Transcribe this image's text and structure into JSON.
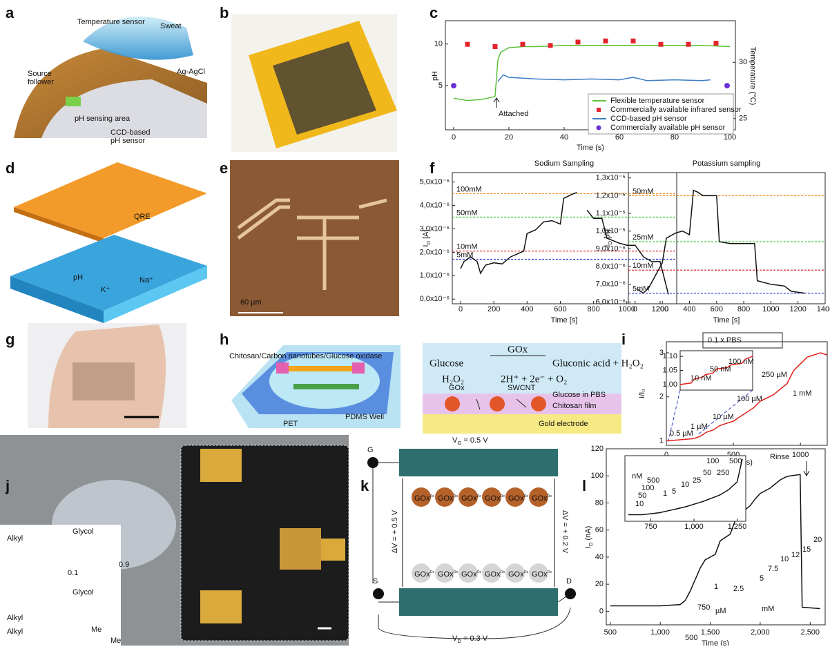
{
  "figure": {
    "panel_letters": [
      "a",
      "b",
      "c",
      "d",
      "e",
      "f",
      "g",
      "h",
      "i",
      "j",
      "k",
      "l"
    ],
    "a": {
      "temperature": "Temperature sensor",
      "sweat": "Sweat",
      "source_follower": [
        "Source",
        "follower"
      ],
      "reference": "Ag-AgCl",
      "ph_area": "pH sensing area",
      "ccd": [
        "CCD-based",
        "pH sensor"
      ]
    },
    "d": {
      "qre": "QRE",
      "ph": "pH",
      "k": "K⁺",
      "na": "Na⁺"
    },
    "e": {
      "scale_bar": "60 µm"
    },
    "h": {
      "callout": "Chitosan/Carbon nanotubes/Glucose oxidase",
      "well": "PDMS Well",
      "substrate": "PET",
      "enzyme_over_arrow": "GOx",
      "reaction1_left": "Glucose",
      "reaction1_right": "Gluconic acid + H₂O₂",
      "reaction2_left": "H₂O₂",
      "reaction2_right": "2H⁺ + 2e⁻ + O₂",
      "medium": "Glucose in PBS",
      "gox": "GOx",
      "swcnt": "SWCNT",
      "film": "Chitosan film",
      "electrode": "Gold electrode"
    },
    "j": {
      "alkyl": "Alkyl",
      "glycol": "Glycol",
      "fractions": [
        "0.9",
        "0.1"
      ],
      "methyl": "Me"
    },
    "k": {
      "terminals": [
        "G",
        "S",
        "D"
      ],
      "vg": {
        "main": "V",
        "sub": "G",
        "rest": " = 0.5 V"
      },
      "vd": {
        "main": "V",
        "sub": "D",
        "rest": " = 0.3 V"
      },
      "dv_left": "ΔV = + 0.5 V",
      "dv_right": "ΔV = + 0.2 V",
      "gox": "GOx",
      "ox": "Ox",
      "re": "Re"
    }
  },
  "chart_data": [
    {
      "type": "line",
      "xlabel": "Time (s)",
      "ylabel": "pH",
      "y2label": "Temperature (°C)",
      "xlim": [
        -3,
        102
      ],
      "ylim": [
        -0.3,
        12.8
      ],
      "y2lim": [
        24,
        33.7
      ],
      "xticks": [
        0,
        20,
        40,
        60,
        80,
        100
      ],
      "yticks": [
        5,
        10
      ],
      "y2ticks": [
        25,
        30
      ],
      "legend": "lower right",
      "annotations": [
        "Attached"
      ],
      "series": [
        {
          "name": "Flexible temperature sensor",
          "color": "#5cc13a",
          "axis": "y2",
          "x": [
            0,
            5,
            10,
            14,
            15,
            16,
            17,
            20,
            25,
            30,
            40,
            50,
            60,
            70,
            80,
            90,
            100
          ],
          "values": [
            26.8,
            26.6,
            26.7,
            26.9,
            27.0,
            30.2,
            30.9,
            31.3,
            31.4,
            31.4,
            31.5,
            31.5,
            31.5,
            31.5,
            31.5,
            31.5,
            31.4
          ]
        },
        {
          "name": "Commercially available infrared sensor",
          "color": "#e3242b",
          "axis": "y2",
          "marker": "square",
          "x": [
            5,
            15,
            25,
            35,
            45,
            55,
            65,
            75,
            85,
            95
          ],
          "values": [
            31.6,
            31.4,
            31.6,
            31.5,
            31.8,
            31.9,
            31.9,
            31.6,
            31.6,
            31.7
          ]
        },
        {
          "name": "CCD-based pH sensor",
          "color": "#3c7dc4",
          "x": [
            16,
            18,
            20,
            25,
            30,
            40,
            50,
            60,
            65,
            70,
            80,
            90,
            93
          ],
          "values": [
            5.5,
            6.3,
            6.0,
            5.9,
            5.8,
            5.7,
            5.8,
            5.7,
            6.0,
            5.6,
            5.7,
            5.6,
            5.7
          ]
        },
        {
          "name": "Commercially available pH sensor",
          "color": "#6a2fd6",
          "marker": "circle",
          "x": [
            0,
            99
          ],
          "values": [
            5.0,
            5.0
          ]
        }
      ]
    },
    {
      "type": "line",
      "title": "Sodium Sampling",
      "xlabel": "Time [s]",
      "ylabel": {
        "main": "I",
        "sub": "D",
        "rest": " [A]"
      },
      "xlim": [
        -50,
        1300
      ],
      "ylim": [
        -2e-07,
        5.4e-06
      ],
      "xticks": [
        0,
        200,
        400,
        600,
        800,
        1000,
        1200
      ],
      "yticks": [
        {
          "value": 0,
          "label": "0,0x10⁻⁶"
        },
        {
          "value": 1e-06,
          "label": "1,0x10⁻⁶"
        },
        {
          "value": 2e-06,
          "label": "2,0x10⁻⁶"
        },
        {
          "value": 3e-06,
          "label": "3,0x10⁻⁶"
        },
        {
          "value": 4e-06,
          "label": "4,0x10⁻⁶"
        },
        {
          "value": 5e-06,
          "label": "5,0x10⁻⁶"
        }
      ],
      "reference_lines": [
        {
          "label": "100mM",
          "value": 4.5e-06,
          "color": "#f0922b"
        },
        {
          "label": "50mM",
          "value": 3.5e-06,
          "color": "#2ecc2e"
        },
        {
          "label": "10mM",
          "value": 2.05e-06,
          "color": "#e32626"
        },
        {
          "label": "5mM",
          "value": 1.7e-06,
          "color": "#2b3fd6"
        }
      ],
      "series": [
        {
          "color": "#111111",
          "x": [
            0,
            20,
            60,
            100,
            120,
            150,
            200,
            250,
            300,
            380,
            400,
            450,
            500,
            550,
            600,
            620,
            680,
            700,
            730,
            760,
            800,
            850,
            880,
            950,
            1000,
            1050,
            1100,
            1150,
            1200,
            1250
          ],
          "values": [
            1.3e-06,
            1.6e-06,
            1.8e-06,
            1.6e-06,
            1.1e-06,
            1.45e-06,
            1.55e-06,
            1.5e-06,
            1.8e-06,
            2.05e-06,
            2.8e-06,
            2.95e-06,
            3.3e-06,
            3.35e-06,
            3.2e-06,
            4.3e-06,
            4.5e-06,
            4.55e-06,
            null,
            3.8e-06,
            3.45e-06,
            3.45e-06,
            2.6e-06,
            2.4e-06,
            2.3e-06,
            2.3e-06,
            1.8e-06,
            1.6e-06,
            1.6e-06,
            2e-07
          ]
        }
      ]
    },
    {
      "type": "line",
      "title": "Potassium sampling",
      "xlabel": "Time [s]",
      "ylabel": {
        "main": "I",
        "sub": "D",
        "rest": " [A]"
      },
      "xlim": [
        -50,
        1400
      ],
      "ylim": [
        5.9e-06,
        1.33e-05
      ],
      "xticks": [
        0,
        200,
        400,
        600,
        800,
        1000,
        1200,
        1400
      ],
      "yticks": [
        {
          "value": 6e-06,
          "label": "6,0x10⁻⁶"
        },
        {
          "value": 7e-06,
          "label": "7,0x10⁻⁶"
        },
        {
          "value": 8e-06,
          "label": "8,0x10⁻⁶"
        },
        {
          "value": 9e-06,
          "label": "9,0x10⁻⁶"
        },
        {
          "value": 1e-05,
          "label": "1,0x10⁻⁵"
        },
        {
          "value": 1.1e-05,
          "label": "1,1x10⁻⁵"
        },
        {
          "value": 1.2e-05,
          "label": "1,2x10⁻⁵"
        },
        {
          "value": 1.3e-05,
          "label": "1,3x10⁻⁵"
        }
      ],
      "reference_lines": [
        {
          "label": "50mM",
          "value": 1.2e-05,
          "color": "#f0922b"
        },
        {
          "label": "25mM",
          "value": 9.4e-06,
          "color": "#2ecc2e"
        },
        {
          "label": "10mM",
          "value": 7.8e-06,
          "color": "#e32626"
        },
        {
          "label": "5mM",
          "value": 6.5e-06,
          "color": "#2b3fd6"
        }
      ],
      "series": [
        {
          "color": "#111111",
          "x": [
            20,
            60,
            100,
            150,
            200,
            230,
            300,
            350,
            400,
            430,
            460,
            500,
            600,
            620,
            700,
            880,
            900,
            1000,
            1100,
            1150,
            1250
          ],
          "values": [
            6.7e-06,
            6.5e-06,
            6.8e-06,
            7.5e-06,
            8.2e-06,
            9.6e-06,
            9.9e-06,
            1e-05,
            9.8e-06,
            1.23e-05,
            1.22e-05,
            1.2e-05,
            1.2e-05,
            9.4e-06,
            9.3e-06,
            9.3e-06,
            7.2e-06,
            7e-06,
            6.9e-06,
            6.6e-06,
            6.5e-06
          ]
        }
      ]
    },
    {
      "type": "line",
      "xlabel": "Time (s)",
      "ylabel": "I/I₀",
      "xlim": [
        0,
        1200
      ],
      "ylim": [
        0.9,
        3.25
      ],
      "xticks": [
        0,
        500,
        1000
      ],
      "yticks": [
        1,
        2,
        3
      ],
      "annotations": [
        "0.1 x PBS",
        "1 mM",
        "250 µM",
        "100 µM",
        "10 µM",
        "1 µM",
        "0.5 µM"
      ],
      "series": [
        {
          "color": "#e0201b",
          "x": [
            0,
            200,
            250,
            300,
            350,
            400,
            500,
            550,
            650,
            700,
            800,
            900,
            950,
            1050,
            1150,
            1200
          ],
          "values": [
            1.0,
            1.05,
            1.1,
            1.2,
            1.25,
            1.35,
            1.45,
            1.55,
            1.75,
            1.9,
            2.05,
            2.3,
            2.6,
            2.9,
            3.0,
            2.95
          ]
        }
      ]
    },
    {
      "type": "line",
      "xlabel": "Time (s)",
      "ylabel": {
        "main": "I",
        "sub": "D",
        "rest": " (nA)"
      },
      "xlim": [
        460,
        2650
      ],
      "ylim": [
        -10,
        120
      ],
      "xticks": [
        500,
        {
          "value": 1000,
          "label": "1,000"
        },
        {
          "value": 1500,
          "label": "1,500"
        },
        {
          "value": 2000,
          "label": "2,000"
        },
        {
          "value": 2500,
          "label": "2,500"
        }
      ],
      "yticks": [
        0,
        20,
        40,
        60,
        80,
        100,
        120
      ],
      "annotations": [
        "Rinse",
        "500",
        "750",
        "µM",
        "1",
        "2.5",
        "5",
        "7.5",
        "10",
        "12",
        "15",
        "20",
        "mM"
      ],
      "series": [
        {
          "color": "#111111",
          "x": [
            500,
            1000,
            1200,
            1250,
            1300,
            1400,
            1450,
            1500,
            1550,
            1600,
            1700,
            1750,
            1800,
            1850,
            1900,
            1950,
            2000,
            2100,
            2150,
            2200,
            2250,
            2300,
            2400,
            2420,
            2600
          ],
          "values": [
            4,
            4,
            5,
            8,
            15,
            32,
            38,
            40,
            42,
            52,
            57,
            67,
            71,
            75,
            78,
            83,
            87,
            91,
            94,
            97,
            99,
            100,
            101,
            3,
            2
          ]
        }
      ]
    },
    {
      "type": "line",
      "xlim": [
        0,
        1000
      ],
      "ylim": [
        0.98,
        1.12
      ],
      "yticks": [
        {
          "value": 1,
          "label": "1.00"
        },
        {
          "value": 1.05,
          "label": "1.05"
        },
        {
          "value": 1.1,
          "label": "1.10"
        }
      ],
      "annotations": [
        "10 nM",
        "50 nM",
        "100 nM"
      ],
      "series": [
        {
          "color": "#e0201b",
          "x": [
            0,
            150,
            200,
            300,
            350,
            450,
            500,
            650,
            700,
            850,
            900,
            1000
          ],
          "values": [
            1.0,
            1.005,
            1.02,
            1.025,
            1.035,
            1.04,
            1.055,
            1.06,
            1.07,
            1.075,
            1.09,
            1.1
          ]
        }
      ]
    },
    {
      "type": "line",
      "xlim": [
        600,
        1300
      ],
      "ylim": [
        0,
        10
      ],
      "xticks": [
        750,
        {
          "value": 1000,
          "label": "1,000"
        },
        {
          "value": 1250,
          "label": "1,250"
        }
      ],
      "annotations": [
        "nM",
        "10",
        "50",
        "100",
        "500",
        "1",
        "5",
        "10",
        "25",
        "50",
        "100",
        "250",
        "500"
      ],
      "series": [
        {
          "color": "#111111",
          "x": [
            620,
            700,
            800,
            850,
            900,
            950,
            1000,
            1050,
            1100,
            1150,
            1200,
            1250,
            1280
          ],
          "values": [
            1,
            1,
            1.3,
            1.6,
            1.9,
            2.2,
            2.6,
            3.0,
            3.5,
            4.0,
            4.8,
            6.0,
            9.5
          ]
        }
      ]
    }
  ]
}
